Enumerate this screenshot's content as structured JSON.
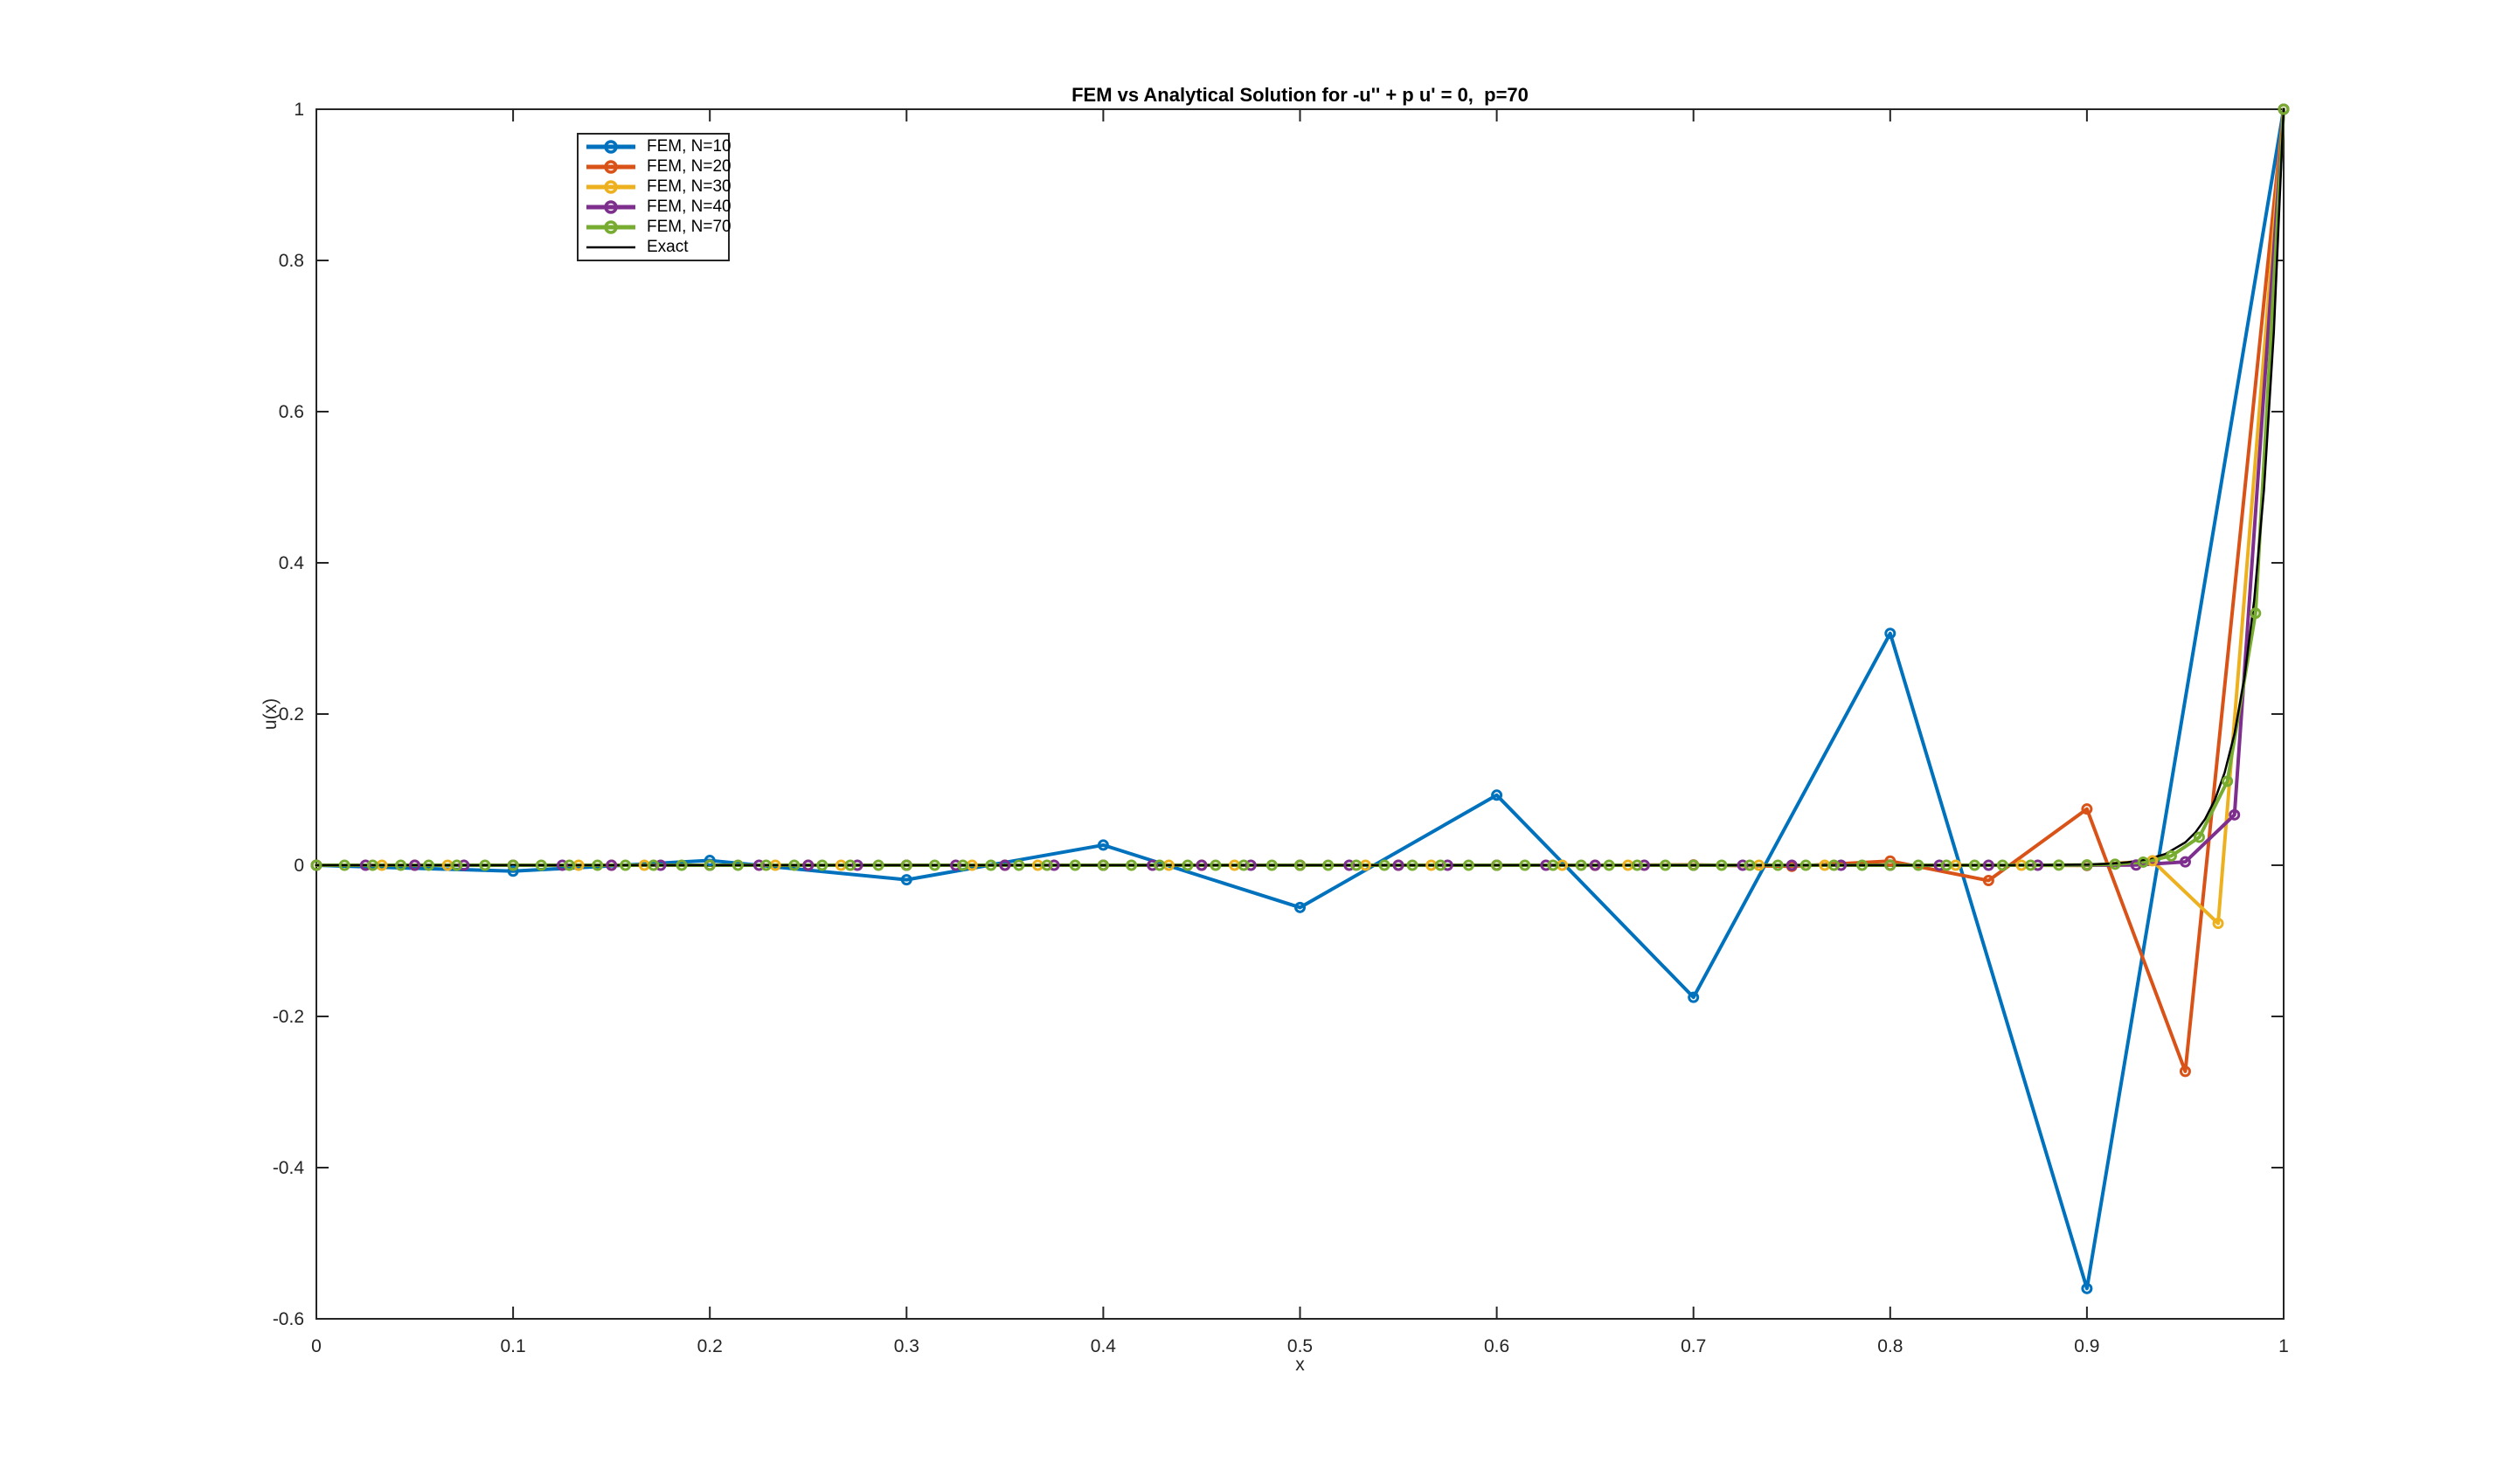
{
  "chart_data": {
    "type": "line",
    "title": "FEM vs Analytical Solution for -u'' + p u' = 0,  p=70",
    "xlabel": "x",
    "ylabel": "u(x)",
    "xlim": [
      0,
      1
    ],
    "ylim": [
      -0.6,
      1
    ],
    "xticks": [
      0,
      0.1,
      0.2,
      0.3,
      0.4,
      0.5,
      0.6,
      0.7,
      0.8,
      0.9,
      1
    ],
    "xtick_labels": [
      "0",
      "0.1",
      "0.2",
      "0.3",
      "0.4",
      "0.5",
      "0.6",
      "0.7",
      "0.8",
      "0.9",
      "1"
    ],
    "yticks": [
      -0.6,
      -0.4,
      -0.2,
      0,
      0.2,
      0.4,
      0.6,
      0.8,
      1
    ],
    "ytick_labels": [
      "-0.6",
      "-0.4",
      "-0.2",
      "0",
      "0.2",
      "0.4",
      "0.6",
      "0.8",
      "1"
    ],
    "grid": false,
    "axis_color": "#252525",
    "background_color": "#ffffff",
    "legend_position": "top-left-inside",
    "series": [
      {
        "name": "FEM, N=10",
        "color": "#0072BD",
        "marker": "circle",
        "x": [
          0,
          0.1,
          0.2,
          0.3,
          0.4,
          0.5,
          0.6,
          0.7,
          0.8,
          0.9,
          1
        ],
        "y": [
          0,
          -0.007864,
          0.006291,
          -0.019189,
          0.026675,
          -0.05588,
          0.092719,
          -0.174758,
          0.3067,
          -0.559925,
          1
        ]
      },
      {
        "name": "FEM, N=20",
        "color": "#D95319",
        "marker": "circle",
        "x": [
          0,
          0.05,
          0.1,
          0.15,
          0.2,
          0.25,
          0.3,
          0.35,
          0.4,
          0.45,
          0.5,
          0.55,
          0.6,
          0.65,
          0.7,
          0.75,
          0.8,
          0.85,
          0.9,
          0.95,
          1
        ],
        "y": [
          0,
          0,
          0,
          0,
          0,
          0,
          0,
          0,
          0,
          -1e-06,
          2e-06,
          -8e-06,
          3.1e-05,
          -0.000112,
          0.000412,
          -0.001509,
          0.005532,
          -0.020286,
          0.07438,
          -0.272726,
          1
        ]
      },
      {
        "name": "FEM, N=30",
        "color": "#EDB120",
        "marker": "circle",
        "x": [
          0,
          0.0333,
          0.0667,
          0.1,
          0.1333,
          0.1667,
          0.2,
          0.2333,
          0.2667,
          0.3,
          0.3333,
          0.3667,
          0.4,
          0.4333,
          0.4667,
          0.5,
          0.5333,
          0.5667,
          0.6,
          0.6333,
          0.6667,
          0.7,
          0.7333,
          0.7667,
          0.8,
          0.8333,
          0.8667,
          0.9,
          0.9333,
          0.9667,
          1
        ],
        "y": [
          0,
          0,
          0,
          0,
          0,
          0,
          0,
          0,
          0,
          0,
          0,
          0,
          0,
          0,
          0,
          0,
          0,
          0,
          0,
          0,
          0,
          0,
          0,
          0,
          0,
          -3e-06,
          3.5e-05,
          -0.000455,
          0.005917,
          -0.076923,
          1
        ]
      },
      {
        "name": "FEM, N=40",
        "color": "#7E2F8E",
        "marker": "circle",
        "x": [
          0,
          0.025,
          0.05,
          0.075,
          0.1,
          0.125,
          0.15,
          0.175,
          0.2,
          0.225,
          0.25,
          0.275,
          0.3,
          0.325,
          0.35,
          0.375,
          0.4,
          0.425,
          0.45,
          0.475,
          0.5,
          0.525,
          0.55,
          0.575,
          0.6,
          0.625,
          0.65,
          0.675,
          0.7,
          0.725,
          0.75,
          0.775,
          0.8,
          0.825,
          0.85,
          0.875,
          0.9,
          0.925,
          0.95,
          0.975,
          1
        ],
        "y": [
          0,
          0,
          0,
          0,
          0,
          0,
          0,
          0,
          0,
          0,
          0,
          0,
          0,
          0,
          0,
          0,
          0,
          0,
          0,
          0,
          0,
          0,
          0,
          0,
          0,
          0,
          0,
          0,
          0,
          0,
          0,
          0,
          0,
          0,
          0,
          1e-06,
          2e-05,
          0.000296,
          0.004444,
          0.066667,
          1
        ]
      },
      {
        "name": "FEM, N=70",
        "color": "#77AC30",
        "marker": "circle",
        "x": [
          0,
          0.0143,
          0.0286,
          0.0429,
          0.0571,
          0.0714,
          0.0857,
          0.1,
          0.1143,
          0.1286,
          0.1429,
          0.1571,
          0.1714,
          0.1857,
          0.2,
          0.2143,
          0.2286,
          0.2429,
          0.2571,
          0.2714,
          0.2857,
          0.3,
          0.3143,
          0.3286,
          0.3429,
          0.3571,
          0.3714,
          0.3857,
          0.4,
          0.4143,
          0.4286,
          0.4429,
          0.4571,
          0.4714,
          0.4857,
          0.5,
          0.5143,
          0.5286,
          0.5429,
          0.5571,
          0.5714,
          0.5857,
          0.6,
          0.6143,
          0.6286,
          0.6429,
          0.6571,
          0.6714,
          0.6857,
          0.7,
          0.7143,
          0.7286,
          0.7429,
          0.7571,
          0.7714,
          0.7857,
          0.8,
          0.8143,
          0.8286,
          0.8429,
          0.8571,
          0.8714,
          0.8857,
          0.9,
          0.9143,
          0.9286,
          0.9429,
          0.9571,
          0.9714,
          0.9857,
          1
        ],
        "y": [
          0,
          0,
          0,
          0,
          0,
          0,
          0,
          0,
          0,
          0,
          0,
          0,
          0,
          0,
          0,
          0,
          0,
          0,
          0,
          0,
          0,
          0,
          0,
          0,
          0,
          0,
          0,
          0,
          0,
          0,
          0,
          0,
          0,
          0,
          0,
          0,
          0,
          0,
          0,
          0,
          0,
          0,
          0,
          0,
          0,
          0,
          0,
          0,
          0,
          0,
          0,
          0,
          0,
          0,
          0,
          0,
          0,
          0,
          0,
          0,
          1.7e-05,
          5.1e-05,
          0.000152,
          0.000457,
          0.001372,
          0.004115,
          0.012346,
          0.037037,
          0.111111,
          0.333333,
          1
        ]
      },
      {
        "name": "Exact",
        "color": "#000000",
        "marker": "none",
        "x": [
          0,
          0.1,
          0.2,
          0.3,
          0.4,
          0.5,
          0.6,
          0.7,
          0.75,
          0.8,
          0.82,
          0.84,
          0.86,
          0.88,
          0.9,
          0.91,
          0.92,
          0.93,
          0.94,
          0.95,
          0.955,
          0.96,
          0.965,
          0.97,
          0.975,
          0.98,
          0.985,
          0.99,
          0.995,
          1
        ],
        "y": [
          0,
          0,
          0,
          0,
          0,
          0,
          0,
          0,
          0,
          1e-06,
          3e-06,
          1.4e-05,
          5.5e-05,
          0.000225,
          0.000912,
          0.001836,
          0.003698,
          0.007447,
          0.014996,
          0.030197,
          0.042852,
          0.06081,
          0.086294,
          0.122456,
          0.173774,
          0.246597,
          0.349938,
          0.496585,
          0.704688,
          1
        ]
      }
    ]
  }
}
